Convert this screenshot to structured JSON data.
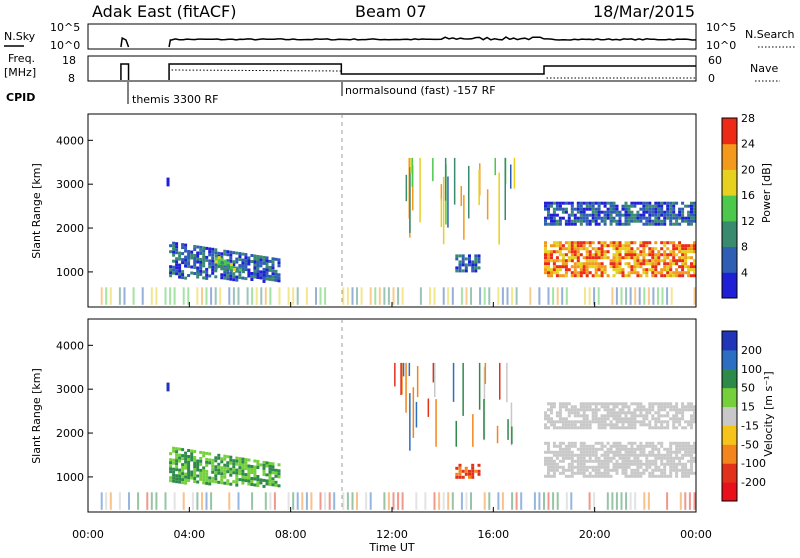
{
  "header": {
    "station": "Adak East (fitACF)",
    "beam": "Beam 07",
    "date": "18/Mar/2015"
  },
  "noise_panel": {
    "left_label": "N.Sky",
    "right_label": "N.Search",
    "left_ticks": [
      "10^5",
      "10^0"
    ],
    "right_ticks": [
      "10^5",
      "10^0"
    ]
  },
  "freq_panel": {
    "left_label_1": "Freq.",
    "left_label_2": "[MHz]",
    "right_label": "Nave",
    "left_ticks": [
      "18",
      "8"
    ],
    "right_ticks": [
      "60",
      "0"
    ]
  },
  "cpid": {
    "label": "CPID",
    "modes": [
      {
        "start_hour": 1.33,
        "text": "themis 3300 RF"
      },
      {
        "start_hour": 10.0,
        "text": "normalsound (fast) -157 RF"
      }
    ]
  },
  "power_panel": {
    "ylabel": "Slant Range [km]",
    "yticks": [
      1000,
      2000,
      3000,
      4000
    ],
    "ylim": [
      200,
      4600
    ],
    "colorbar_label": "Power [dB]",
    "colorbar_ticks": [
      "4",
      "8",
      "12",
      "16",
      "20",
      "24",
      "28"
    ],
    "colorbar_colors": [
      "#1f1fd6",
      "#2f5fb4",
      "#3a8a70",
      "#4cc84c",
      "#e6d020",
      "#f39a1c",
      "#ec2a16"
    ]
  },
  "velocity_panel": {
    "ylabel": "Slant Range [km]",
    "yticks": [
      1000,
      2000,
      3000,
      4000
    ],
    "ylim": [
      200,
      4600
    ],
    "colorbar_label": "Velocity [m s⁻¹]",
    "colorbar_ticks": [
      "200",
      "100",
      "50",
      "15",
      "-15",
      "-50",
      "-100",
      "-200"
    ],
    "colorbar_colors": [
      "#1f36b8",
      "#2b6ec2",
      "#2e8a4a",
      "#76d03c",
      "#c8c8c8",
      "#f5c31a",
      "#f3851c",
      "#e2311a",
      "#e8101a"
    ]
  },
  "xaxis": {
    "label": "Time UT",
    "ticks": [
      "00:00",
      "04:00",
      "08:00",
      "12:00",
      "16:00",
      "20:00",
      "00:00"
    ],
    "range_hours": [
      0,
      24
    ]
  },
  "chart_data": {
    "type": "heatmap",
    "x_unit": "hours UT",
    "y_unit": "km",
    "power_regions": [
      {
        "t0": 3.2,
        "t1": 7.6,
        "r0": 1700,
        "r1": 900,
        "value_db": 8
      },
      {
        "t0": 5.0,
        "t1": 6.2,
        "r0": 1400,
        "r1": 1100,
        "value_db": 16
      },
      {
        "t0": 14.5,
        "t1": 15.5,
        "r0": 1400,
        "r1": 1000,
        "value_db": 8
      },
      {
        "t0": 18.0,
        "t1": 24.0,
        "r0": 1700,
        "r1": 900,
        "value_db": 24
      },
      {
        "t0": 18.0,
        "t1": 24.0,
        "r0": 2600,
        "r1": 2100,
        "value_db": 8
      }
    ],
    "velocity_regions": [
      {
        "t0": 3.2,
        "t1": 7.6,
        "r0": 1700,
        "r1": 900,
        "value_ms": 50
      },
      {
        "t0": 14.5,
        "t1": 15.5,
        "r0": 1300,
        "r1": 1000,
        "value_ms": -100
      },
      {
        "t0": 18.0,
        "t1": 24.0,
        "r0": 1800,
        "r1": 1000,
        "value_ms": 0
      },
      {
        "t0": 18.0,
        "t1": 24.0,
        "r0": 2700,
        "r1": 2100,
        "value_ms": 0
      }
    ]
  }
}
